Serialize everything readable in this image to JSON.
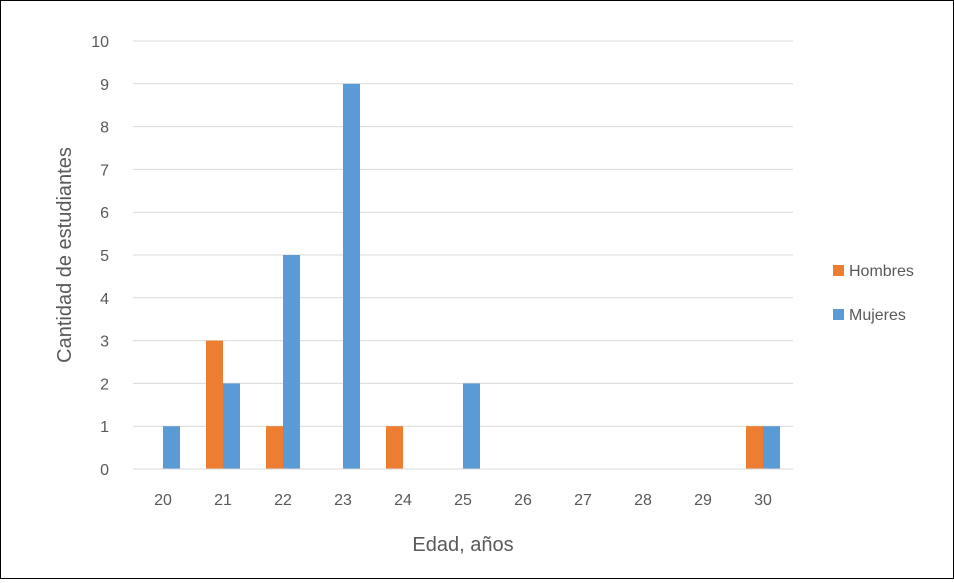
{
  "chart_data": {
    "type": "bar",
    "title": "",
    "xlabel": "Edad, años",
    "ylabel": "Cantidad de estudiantes",
    "categories": [
      "20",
      "21",
      "22",
      "23",
      "24",
      "25",
      "26",
      "27",
      "28",
      "29",
      "30"
    ],
    "series": [
      {
        "name": "Hombres",
        "color": "#ED7D31",
        "values": [
          0,
          3,
          1,
          0,
          1,
          0,
          0,
          0,
          0,
          0,
          1
        ]
      },
      {
        "name": "Mujeres",
        "color": "#5B9BD5",
        "values": [
          1,
          2,
          5,
          9,
          0,
          2,
          0,
          0,
          0,
          0,
          1
        ]
      }
    ],
    "ylim": [
      0,
      10
    ],
    "yticks": [
      "0",
      "1",
      "2",
      "3",
      "4",
      "5",
      "6",
      "7",
      "8",
      "9",
      "10"
    ],
    "grid": true,
    "legend_position": "right"
  }
}
